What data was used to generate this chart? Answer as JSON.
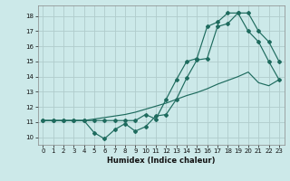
{
  "xlabel": "Humidex (Indice chaleur)",
  "bg_color": "#cce9e9",
  "grid_color": "#b0cccc",
  "line_color": "#1e6b5e",
  "xlim": [
    -0.5,
    23.5
  ],
  "ylim": [
    9.5,
    18.7
  ],
  "xticks": [
    0,
    1,
    2,
    3,
    4,
    5,
    6,
    7,
    8,
    9,
    10,
    11,
    12,
    13,
    14,
    15,
    16,
    17,
    18,
    19,
    20,
    21,
    22,
    23
  ],
  "yticks": [
    10,
    11,
    12,
    13,
    14,
    15,
    16,
    17,
    18
  ],
  "line1_x": [
    0,
    1,
    2,
    3,
    4,
    5,
    6,
    7,
    8,
    9,
    10,
    11,
    12,
    13,
    14,
    15,
    16,
    17,
    18,
    19,
    20,
    21,
    22,
    23
  ],
  "line1_y": [
    11.1,
    11.1,
    11.1,
    11.1,
    11.1,
    11.1,
    11.1,
    11.1,
    11.1,
    11.1,
    11.5,
    11.2,
    12.5,
    13.8,
    15.0,
    15.2,
    17.3,
    17.6,
    18.2,
    18.2,
    17.0,
    16.3,
    15.0,
    13.8
  ],
  "line2_x": [
    0,
    1,
    2,
    3,
    4,
    5,
    6,
    7,
    8,
    9,
    10,
    11,
    12,
    13,
    14,
    15,
    16,
    17,
    18,
    19,
    20,
    21,
    22,
    23
  ],
  "line2_y": [
    11.1,
    11.1,
    11.1,
    11.1,
    11.1,
    10.3,
    9.9,
    10.5,
    10.9,
    10.4,
    10.7,
    11.4,
    11.5,
    12.5,
    13.9,
    15.1,
    15.2,
    17.3,
    17.5,
    18.2,
    18.2,
    17.0,
    16.3,
    15.0
  ],
  "line3_x": [
    0,
    1,
    2,
    3,
    4,
    5,
    6,
    7,
    8,
    9,
    10,
    11,
    12,
    13,
    14,
    15,
    16,
    17,
    18,
    19,
    20,
    21,
    22,
    23
  ],
  "line3_y": [
    11.1,
    11.1,
    11.1,
    11.1,
    11.1,
    11.2,
    11.3,
    11.4,
    11.5,
    11.65,
    11.85,
    12.05,
    12.25,
    12.5,
    12.75,
    12.95,
    13.2,
    13.5,
    13.75,
    14.0,
    14.3,
    13.6,
    13.4,
    13.8
  ]
}
